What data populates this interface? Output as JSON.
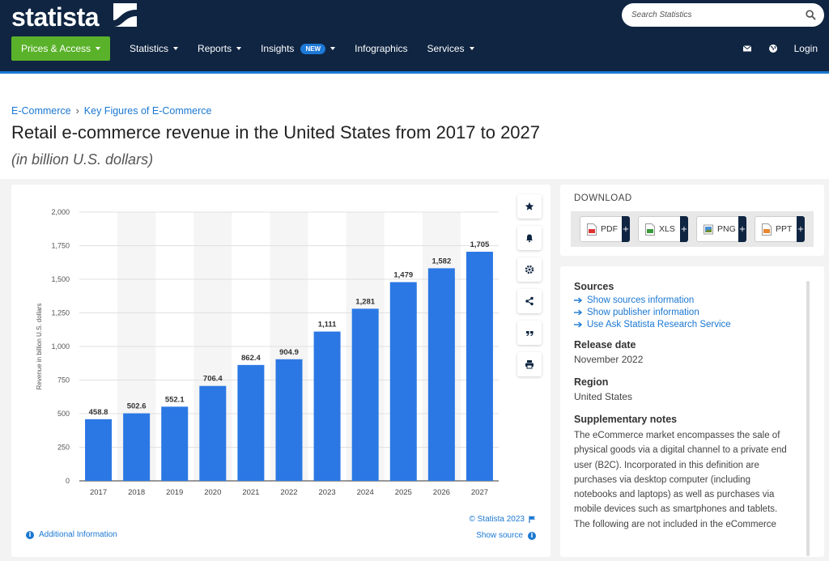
{
  "header": {
    "logo_text": "statista",
    "search_placeholder": "Search Statistics",
    "nav": {
      "prices": "Prices & Access",
      "statistics": "Statistics",
      "reports": "Reports",
      "insights": "Insights",
      "new_badge": "NEW",
      "infographics": "Infographics",
      "services": "Services"
    },
    "login": "Login"
  },
  "breadcrumb": [
    "E-Commerce",
    "Key Figures of E-Commerce"
  ],
  "page_title": "Retail e-commerce revenue in the United States from 2017 to 2027",
  "page_subtitle": "(in billion U.S. dollars)",
  "chart_footer": {
    "additional_info": "Additional Information",
    "copyright": "© Statista 2023",
    "show_source": "Show source"
  },
  "download": {
    "title": "DOWNLOAD",
    "buttons": [
      "PDF",
      "XLS",
      "PNG",
      "PPT"
    ],
    "plus": "+"
  },
  "info": {
    "sources_title": "Sources",
    "source_links": [
      "Show sources information",
      "Show publisher information",
      "Use Ask Statista Research Service"
    ],
    "release_title": "Release date",
    "release_value": "November 2022",
    "region_title": "Region",
    "region_value": "United States",
    "notes_title": "Supplementary notes",
    "notes_text": "The eCommerce market encompasses the sale of physical goods via a digital channel to a private end user (B2C). Incorporated in this definition are purchases via desktop computer (including notebooks and laptops) as well as purchases via mobile devices such as smartphones and tablets. The following are not included in the eCommerce"
  },
  "colors": {
    "header_bg": "#0f2542",
    "accent_green": "#5ab22a",
    "bar_blue": "#2b78e4",
    "link_blue": "#1b78d2"
  },
  "chart_data": {
    "type": "bar",
    "categories": [
      "2017",
      "2018",
      "2019",
      "2020",
      "2021",
      "2022",
      "2023",
      "2024",
      "2025",
      "2026",
      "2027"
    ],
    "values": [
      458.8,
      502.6,
      552.1,
      706.4,
      862.4,
      904.9,
      1111,
      1281,
      1479,
      1582,
      1705
    ],
    "value_labels": [
      "458.8",
      "502.6",
      "552.1",
      "706.4",
      "862.4",
      "904.9",
      "1,111",
      "1,281",
      "1,479",
      "1,582",
      "1,705"
    ],
    "ylabel": "Revenue in billion U.S. dollars",
    "ylim": [
      0,
      2000
    ],
    "yticks": [
      0,
      250,
      500,
      750,
      1000,
      1250,
      1500,
      1750,
      2000
    ],
    "ytick_labels": [
      "0",
      "250",
      "500",
      "750",
      "1,000",
      "1,250",
      "1,500",
      "1,750",
      "2,000"
    ],
    "grid": true
  }
}
